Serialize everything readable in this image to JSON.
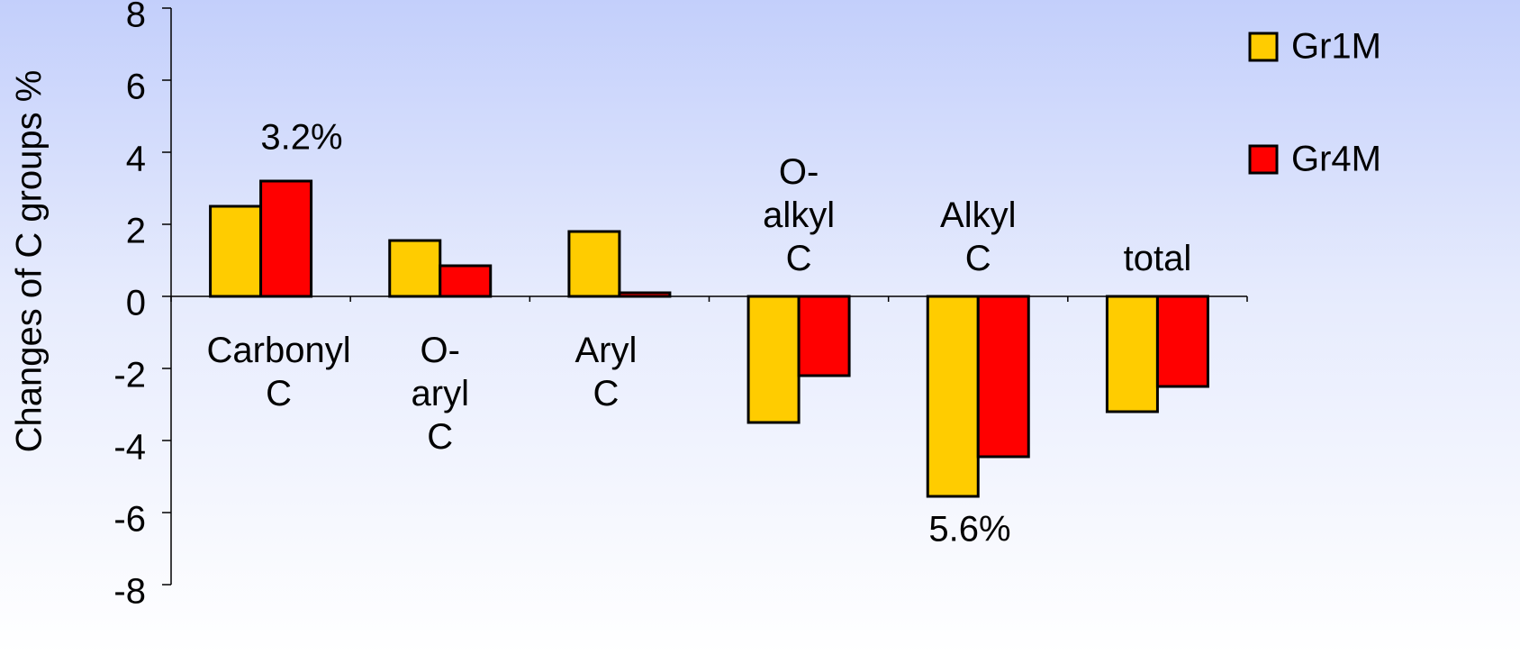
{
  "chart_data": {
    "type": "bar",
    "y_label": "Changes of C groups %",
    "categories": [
      "Carbonyl C",
      "O-aryl C",
      "Aryl C",
      "O-alkyl C",
      "Alkyl C",
      "total"
    ],
    "series": [
      {
        "name": "Gr1M",
        "color": "#ffcc00",
        "values": [
          2.5,
          1.55,
          1.8,
          -3.5,
          -5.55,
          -3.2
        ]
      },
      {
        "name": "Gr4M",
        "color": "#ff0000",
        "values": [
          3.2,
          0.85,
          0.1,
          -2.2,
          -4.45,
          -2.5
        ]
      }
    ],
    "annotations": [
      "3.2%",
      "5.6%"
    ],
    "ylim": [
      -8,
      8
    ],
    "yticks": [
      -8,
      -6,
      -4,
      -2,
      0,
      2,
      4,
      6,
      8
    ],
    "legend": "top-right",
    "grid": false
  }
}
